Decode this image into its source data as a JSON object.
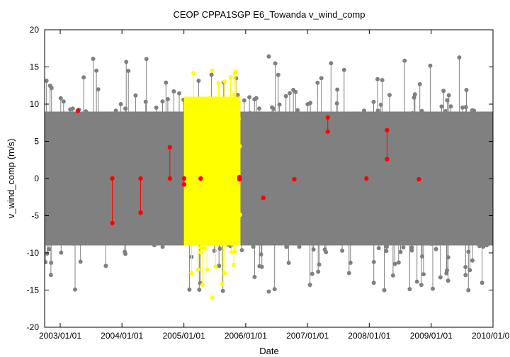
{
  "chart_data": {
    "type": "scatter",
    "title": "CEOP CPPA1SGP E6_Towanda  v_wind_comp",
    "xlabel": "Date",
    "ylabel": "v_wind_comp (m/s)",
    "xlim": [
      "2002-10-01",
      "2010-01-01"
    ],
    "ylim": [
      -20,
      20
    ],
    "x_ticks": [
      "2003/01/01",
      "2004/01/01",
      "2005/01/01",
      "2006/01/01",
      "2007/01/01",
      "2008/01/01",
      "2009/01/01",
      "2010/01/01"
    ],
    "y_ticks": [
      -20,
      -15,
      -10,
      -5,
      0,
      5,
      10,
      15,
      20
    ],
    "grid": false,
    "legend": "none",
    "series": [
      {
        "role": "all data",
        "color": "#808080",
        "x_range": [
          "2002-10-01",
          "2010-01-01"
        ],
        "typical_range": [
          -10,
          10
        ],
        "y_max": 16.4,
        "y_min": -15.2
      },
      {
        "role": "highlighted period",
        "color": "#ffff00",
        "x_range": [
          "2005-01-01",
          "2005-12-01"
        ],
        "typical_range": [
          -10,
          12
        ],
        "y_max": 14.5,
        "y_min": -16.0
      },
      {
        "role": "flagged points",
        "color": "#ff0000",
        "points": [
          {
            "x": "2003-04-15",
            "y": 9.1
          },
          {
            "x": "2003-11-05",
            "y": 0.0
          },
          {
            "x": "2003-11-05",
            "y": -6.0
          },
          {
            "x": "2004-04-20",
            "y": 0.0
          },
          {
            "x": "2004-04-20",
            "y": -4.6
          },
          {
            "x": "2004-10-10",
            "y": 4.2
          },
          {
            "x": "2004-10-10",
            "y": 0.0
          },
          {
            "x": "2005-01-02",
            "y": 0.0
          },
          {
            "x": "2005-01-02",
            "y": -0.8
          },
          {
            "x": "2005-04-10",
            "y": 0.0
          },
          {
            "x": "2005-11-25",
            "y": 0.2
          },
          {
            "x": "2005-11-25",
            "y": -0.1
          },
          {
            "x": "2006-04-15",
            "y": -2.6
          },
          {
            "x": "2006-10-15",
            "y": -0.1
          },
          {
            "x": "2007-05-01",
            "y": 8.2
          },
          {
            "x": "2007-05-01",
            "y": 6.3
          },
          {
            "x": "2007-12-15",
            "y": 0.0
          },
          {
            "x": "2008-04-15",
            "y": 6.5
          },
          {
            "x": "2008-04-15",
            "y": 2.6
          },
          {
            "x": "2008-10-20",
            "y": -0.1
          }
        ]
      }
    ]
  }
}
